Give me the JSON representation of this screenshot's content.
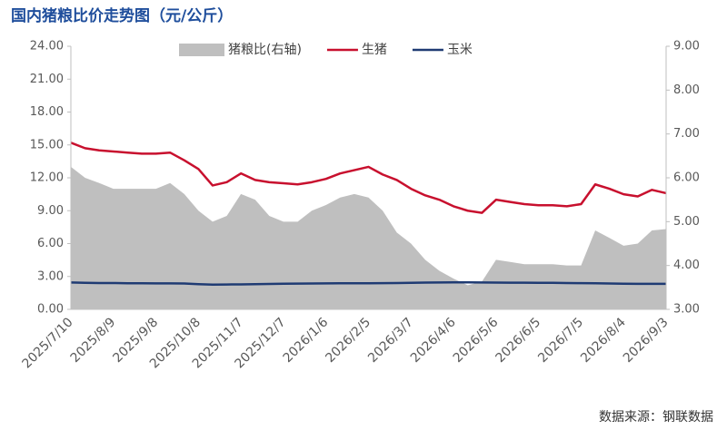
{
  "chart_data": {
    "type": "combo",
    "title": "国内猪粮比价走势图（元/公斤）",
    "source": "数据来源：钢联数据",
    "categories": [
      "2025/7/10",
      null,
      null,
      "2025/8/9",
      null,
      null,
      "2025/9/8",
      null,
      null,
      "2025/10/8",
      null,
      null,
      "2025/11/7",
      null,
      null,
      "2025/12/7",
      null,
      null,
      "2026/1/6",
      null,
      null,
      "2026/2/5",
      null,
      null,
      "2026/3/7",
      null,
      null,
      "2026/4/6",
      null,
      null,
      "2026/5/6",
      null,
      null,
      "2026/6/5",
      null,
      null,
      "2026/7/5",
      null,
      null,
      "2026/8/4",
      null,
      null,
      "2026/9/3"
    ],
    "ylim": [
      0,
      24
    ],
    "yticks": [
      {
        "value": 0,
        "label": "0.00"
      },
      {
        "value": 3,
        "label": "3.00"
      },
      {
        "value": 6,
        "label": "6.00"
      },
      {
        "value": 9,
        "label": "9.00"
      },
      {
        "value": 12,
        "label": "12.00"
      },
      {
        "value": 15,
        "label": "15.00"
      },
      {
        "value": 18,
        "label": "18.00"
      },
      {
        "value": 21,
        "label": "21.00"
      },
      {
        "value": 24,
        "label": "24.00"
      }
    ],
    "y2lim": [
      3,
      9
    ],
    "y2ticks": [
      {
        "value": 3,
        "label": "3.00"
      },
      {
        "value": 4,
        "label": "4.00"
      },
      {
        "value": 5,
        "label": "5.00"
      },
      {
        "value": 6,
        "label": "6.00"
      },
      {
        "value": 7,
        "label": "7.00"
      },
      {
        "value": 8,
        "label": "8.00"
      },
      {
        "value": 9,
        "label": "9.00"
      }
    ],
    "legend": "top",
    "series": [
      {
        "name": "猪粮比(右轴)",
        "type": "area",
        "axis": "y2",
        "color": "#bfbfbf",
        "values": [
          6.25,
          6.0,
          5.88,
          5.75,
          5.75,
          5.75,
          5.75,
          5.88,
          5.63,
          5.25,
          5.0,
          5.13,
          5.63,
          5.5,
          5.13,
          5.0,
          5.0,
          5.25,
          5.38,
          5.55,
          5.63,
          5.55,
          5.25,
          4.75,
          4.5,
          4.13,
          3.88,
          3.7,
          3.55,
          3.63,
          4.13,
          4.08,
          4.03,
          4.03,
          4.03,
          4.0,
          4.0,
          4.8,
          4.63,
          4.45,
          4.5,
          4.8,
          4.83
        ]
      },
      {
        "name": "生猪",
        "type": "line",
        "color": "#c8102e",
        "values": [
          15.2,
          14.7,
          14.5,
          14.4,
          14.3,
          14.2,
          14.2,
          14.3,
          13.6,
          12.8,
          11.3,
          11.6,
          12.4,
          11.8,
          11.6,
          11.5,
          11.4,
          11.6,
          11.9,
          12.4,
          12.7,
          13.0,
          12.3,
          11.8,
          11.0,
          10.4,
          10.0,
          9.4,
          9.0,
          8.8,
          10.0,
          9.8,
          9.6,
          9.5,
          9.5,
          9.4,
          9.6,
          11.4,
          11.0,
          10.5,
          10.3,
          10.9,
          10.6
        ]
      },
      {
        "name": "玉米",
        "type": "line",
        "color": "#1f3b73",
        "values": [
          2.45,
          2.42,
          2.4,
          2.4,
          2.38,
          2.38,
          2.37,
          2.37,
          2.36,
          2.3,
          2.26,
          2.27,
          2.28,
          2.3,
          2.32,
          2.34,
          2.35,
          2.36,
          2.37,
          2.38,
          2.38,
          2.38,
          2.39,
          2.4,
          2.42,
          2.44,
          2.45,
          2.46,
          2.46,
          2.45,
          2.44,
          2.43,
          2.43,
          2.42,
          2.42,
          2.4,
          2.39,
          2.38,
          2.36,
          2.34,
          2.33,
          2.33,
          2.33
        ]
      }
    ]
  }
}
